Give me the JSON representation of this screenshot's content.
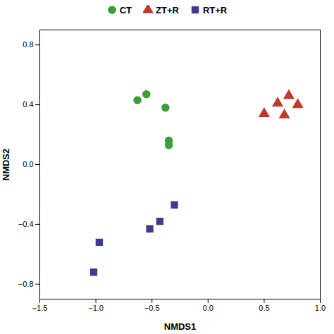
{
  "chart_data": {
    "type": "scatter",
    "xlabel": "NMDS1",
    "ylabel": "NMDS2",
    "xlim": [
      -1.5,
      1.0
    ],
    "ylim": [
      -0.9,
      0.9
    ],
    "xticks": [
      {
        "value": -1.5,
        "label": "−1.5"
      },
      {
        "value": -1.0,
        "label": "−1.0"
      },
      {
        "value": -0.5,
        "label": "−0.5"
      },
      {
        "value": 0.0,
        "label": "0.0"
      },
      {
        "value": 0.5,
        "label": "0.5"
      },
      {
        "value": 1.0,
        "label": "1.0"
      }
    ],
    "yticks": [
      {
        "value": -0.8,
        "label": "−0.8"
      },
      {
        "value": -0.4,
        "label": "−0.4"
      },
      {
        "value": 0.0,
        "label": "0.0"
      },
      {
        "value": 0.4,
        "label": "0.4"
      },
      {
        "value": 0.8,
        "label": "0.8"
      }
    ],
    "legend": "top",
    "series": [
      {
        "name": "CT",
        "color": "#3a9e3a",
        "marker": "circle",
        "x": [
          -0.55,
          -0.63,
          -0.38,
          -0.35,
          -0.35
        ],
        "y": [
          0.47,
          0.43,
          0.38,
          0.16,
          0.13
        ]
      },
      {
        "name": "ZT+R",
        "color": "#c0392b",
        "marker": "triangle",
        "x": [
          0.5,
          0.62,
          0.72,
          0.8,
          0.68
        ],
        "y": [
          0.34,
          0.41,
          0.46,
          0.4,
          0.33
        ]
      },
      {
        "name": "RT+R",
        "color": "#3d3d8f",
        "marker": "square",
        "x": [
          -0.97,
          -1.02,
          -0.52,
          -0.43,
          -0.3
        ],
        "y": [
          -0.52,
          -0.72,
          -0.43,
          -0.38,
          -0.27
        ]
      }
    ]
  }
}
